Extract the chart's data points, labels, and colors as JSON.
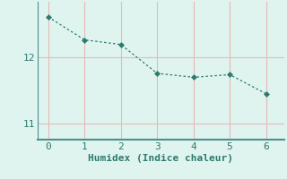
{
  "x": [
    0,
    1,
    2,
    3,
    4,
    5,
    6
  ],
  "y": [
    12.62,
    12.27,
    12.2,
    11.76,
    11.7,
    11.74,
    11.45
  ],
  "line_color": "#2d7a6e",
  "marker": "D",
  "marker_size": 3,
  "bg_color": "#dff4ef",
  "grid_color": "#e8b8b8",
  "xlabel": "Humidex (Indice chaleur)",
  "xlabel_fontsize": 8,
  "tick_fontsize": 8,
  "ylim": [
    10.75,
    12.85
  ],
  "xlim": [
    -0.3,
    6.5
  ],
  "yticks": [
    11,
    12
  ],
  "xticks": [
    0,
    1,
    2,
    3,
    4,
    5,
    6
  ],
  "spine_color": "#4a9090",
  "tick_color": "#2d7a6e"
}
